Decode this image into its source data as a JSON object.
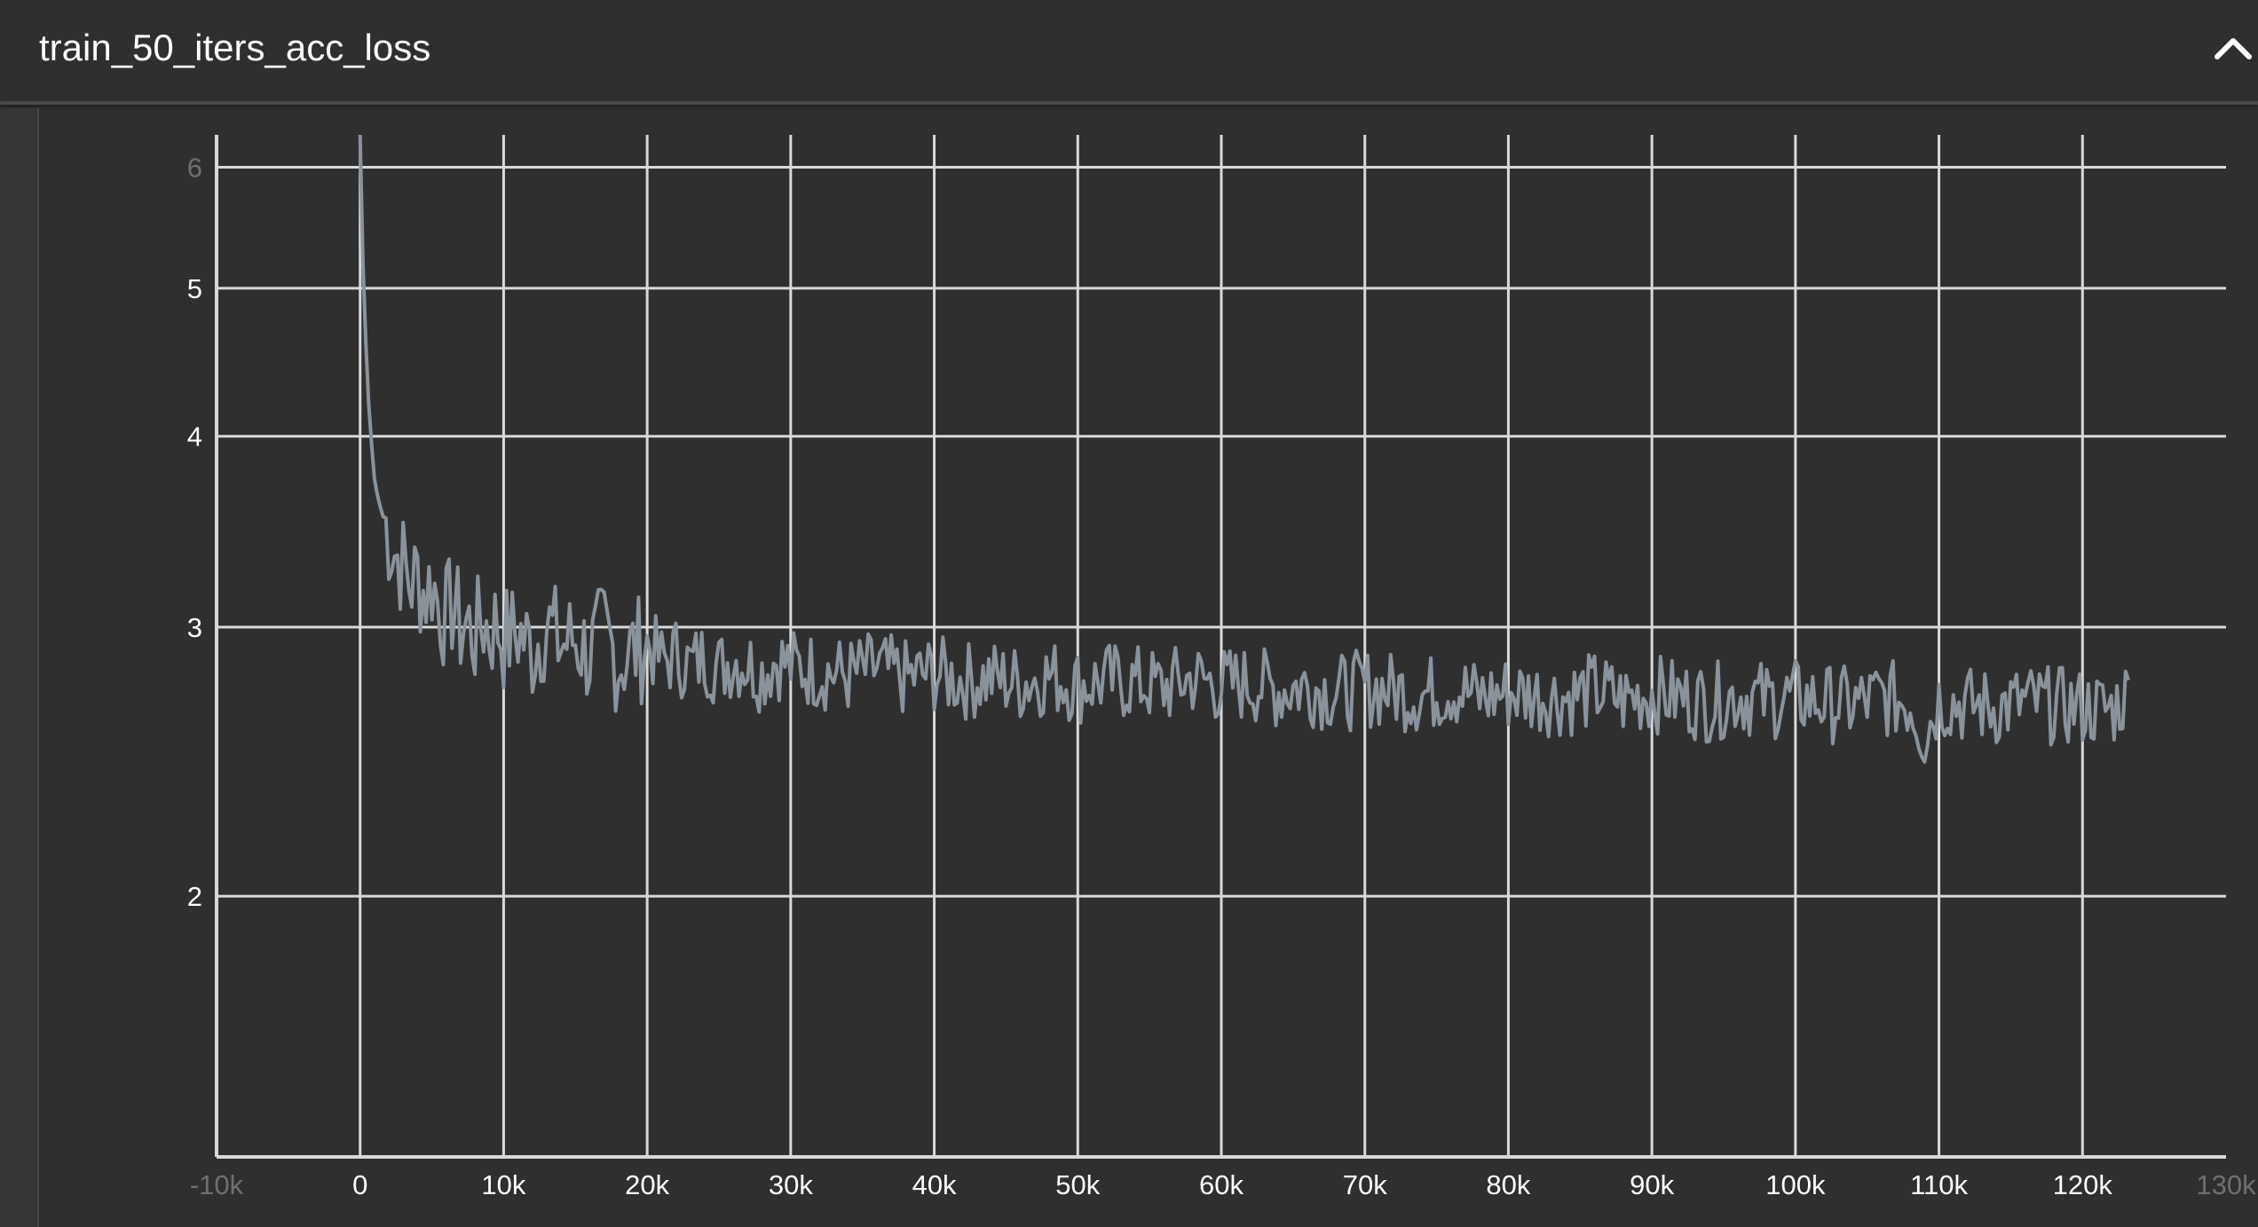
{
  "card": {
    "title": "train_50_iters_acc_loss"
  },
  "icons": {
    "collapse": "chevron-up-icon"
  },
  "colors": {
    "background": "#2f2f2f",
    "grid": "#d9d9d9",
    "series": "#8a939c",
    "text": "#ffffff"
  },
  "chart_data": {
    "type": "line",
    "title": "train_50_iters_acc_loss",
    "xlabel": "",
    "ylabel": "",
    "y_scale": "log",
    "xlim": [
      -10000,
      130000
    ],
    "ylim": [
      1.35,
      6.3
    ],
    "grid": true,
    "x_ticks": [
      {
        "value": -10000,
        "label": "-10k",
        "faded": true
      },
      {
        "value": 0,
        "label": "0"
      },
      {
        "value": 10000,
        "label": "10k"
      },
      {
        "value": 20000,
        "label": "20k"
      },
      {
        "value": 30000,
        "label": "30k"
      },
      {
        "value": 40000,
        "label": "40k"
      },
      {
        "value": 50000,
        "label": "50k"
      },
      {
        "value": 60000,
        "label": "60k"
      },
      {
        "value": 70000,
        "label": "70k"
      },
      {
        "value": 80000,
        "label": "80k"
      },
      {
        "value": 90000,
        "label": "90k"
      },
      {
        "value": 100000,
        "label": "100k"
      },
      {
        "value": 110000,
        "label": "110k"
      },
      {
        "value": 120000,
        "label": "120k"
      },
      {
        "value": 130000,
        "label": "130k",
        "faded": true
      }
    ],
    "y_ticks": [
      {
        "value": 2,
        "label": "2"
      },
      {
        "value": 3,
        "label": "3"
      },
      {
        "value": 4,
        "label": "4"
      },
      {
        "value": 5,
        "label": "5"
      },
      {
        "value": 6,
        "label": "6",
        "faded": true
      }
    ],
    "series": [
      {
        "color": "#8a939c",
        "x": [
          0,
          200,
          400,
          600,
          800,
          1000,
          1300,
          1600,
          2000,
          2500,
          3000,
          3500,
          4000,
          4500,
          5000,
          5500,
          6000,
          6500,
          7000,
          7500,
          8000,
          8500,
          9000,
          9500,
          10000,
          11000,
          12000,
          13000,
          14000,
          15000,
          16000,
          17000,
          18000,
          19000,
          20000,
          21000,
          22000,
          23000,
          24000,
          25000,
          26000,
          27000,
          28000,
          29000,
          30000,
          32000,
          34000,
          36000,
          38000,
          40000,
          42000,
          44000,
          46000,
          48000,
          50000,
          52000,
          54000,
          56000,
          58000,
          60000,
          62000,
          64000,
          66000,
          68000,
          70000,
          72000,
          74000,
          76000,
          78000,
          80000,
          82000,
          84000,
          86000,
          88000,
          90000,
          92000,
          94000,
          96000,
          98000,
          100000,
          102000,
          104000,
          106000,
          108000,
          109000,
          110000,
          112000,
          114000,
          116000,
          118000,
          120000,
          122000,
          123300
        ],
        "y": [
          6.3,
          5.2,
          4.6,
          4.2,
          3.95,
          3.75,
          3.62,
          3.55,
          3.45,
          3.35,
          3.3,
          3.2,
          3.25,
          3.15,
          3.22,
          3.1,
          3.05,
          3.12,
          3.0,
          3.02,
          2.96,
          3.04,
          2.98,
          3.02,
          2.95,
          2.98,
          2.9,
          3.02,
          2.92,
          2.95,
          2.88,
          2.98,
          2.85,
          2.9,
          2.93,
          2.85,
          2.88,
          2.83,
          2.87,
          2.82,
          2.86,
          2.84,
          2.8,
          2.86,
          2.83,
          2.81,
          2.79,
          2.82,
          2.78,
          2.8,
          2.77,
          2.78,
          2.76,
          2.79,
          2.75,
          2.77,
          2.76,
          2.74,
          2.78,
          2.75,
          2.76,
          2.73,
          2.75,
          2.72,
          2.74,
          2.73,
          2.71,
          2.74,
          2.7,
          2.72,
          2.71,
          2.7,
          2.73,
          2.69,
          2.72,
          2.7,
          2.68,
          2.71,
          2.69,
          2.7,
          2.68,
          2.67,
          2.7,
          2.68,
          2.55,
          2.69,
          2.67,
          2.66,
          2.68,
          2.67,
          2.66,
          2.65,
          2.72
        ]
      }
    ]
  }
}
